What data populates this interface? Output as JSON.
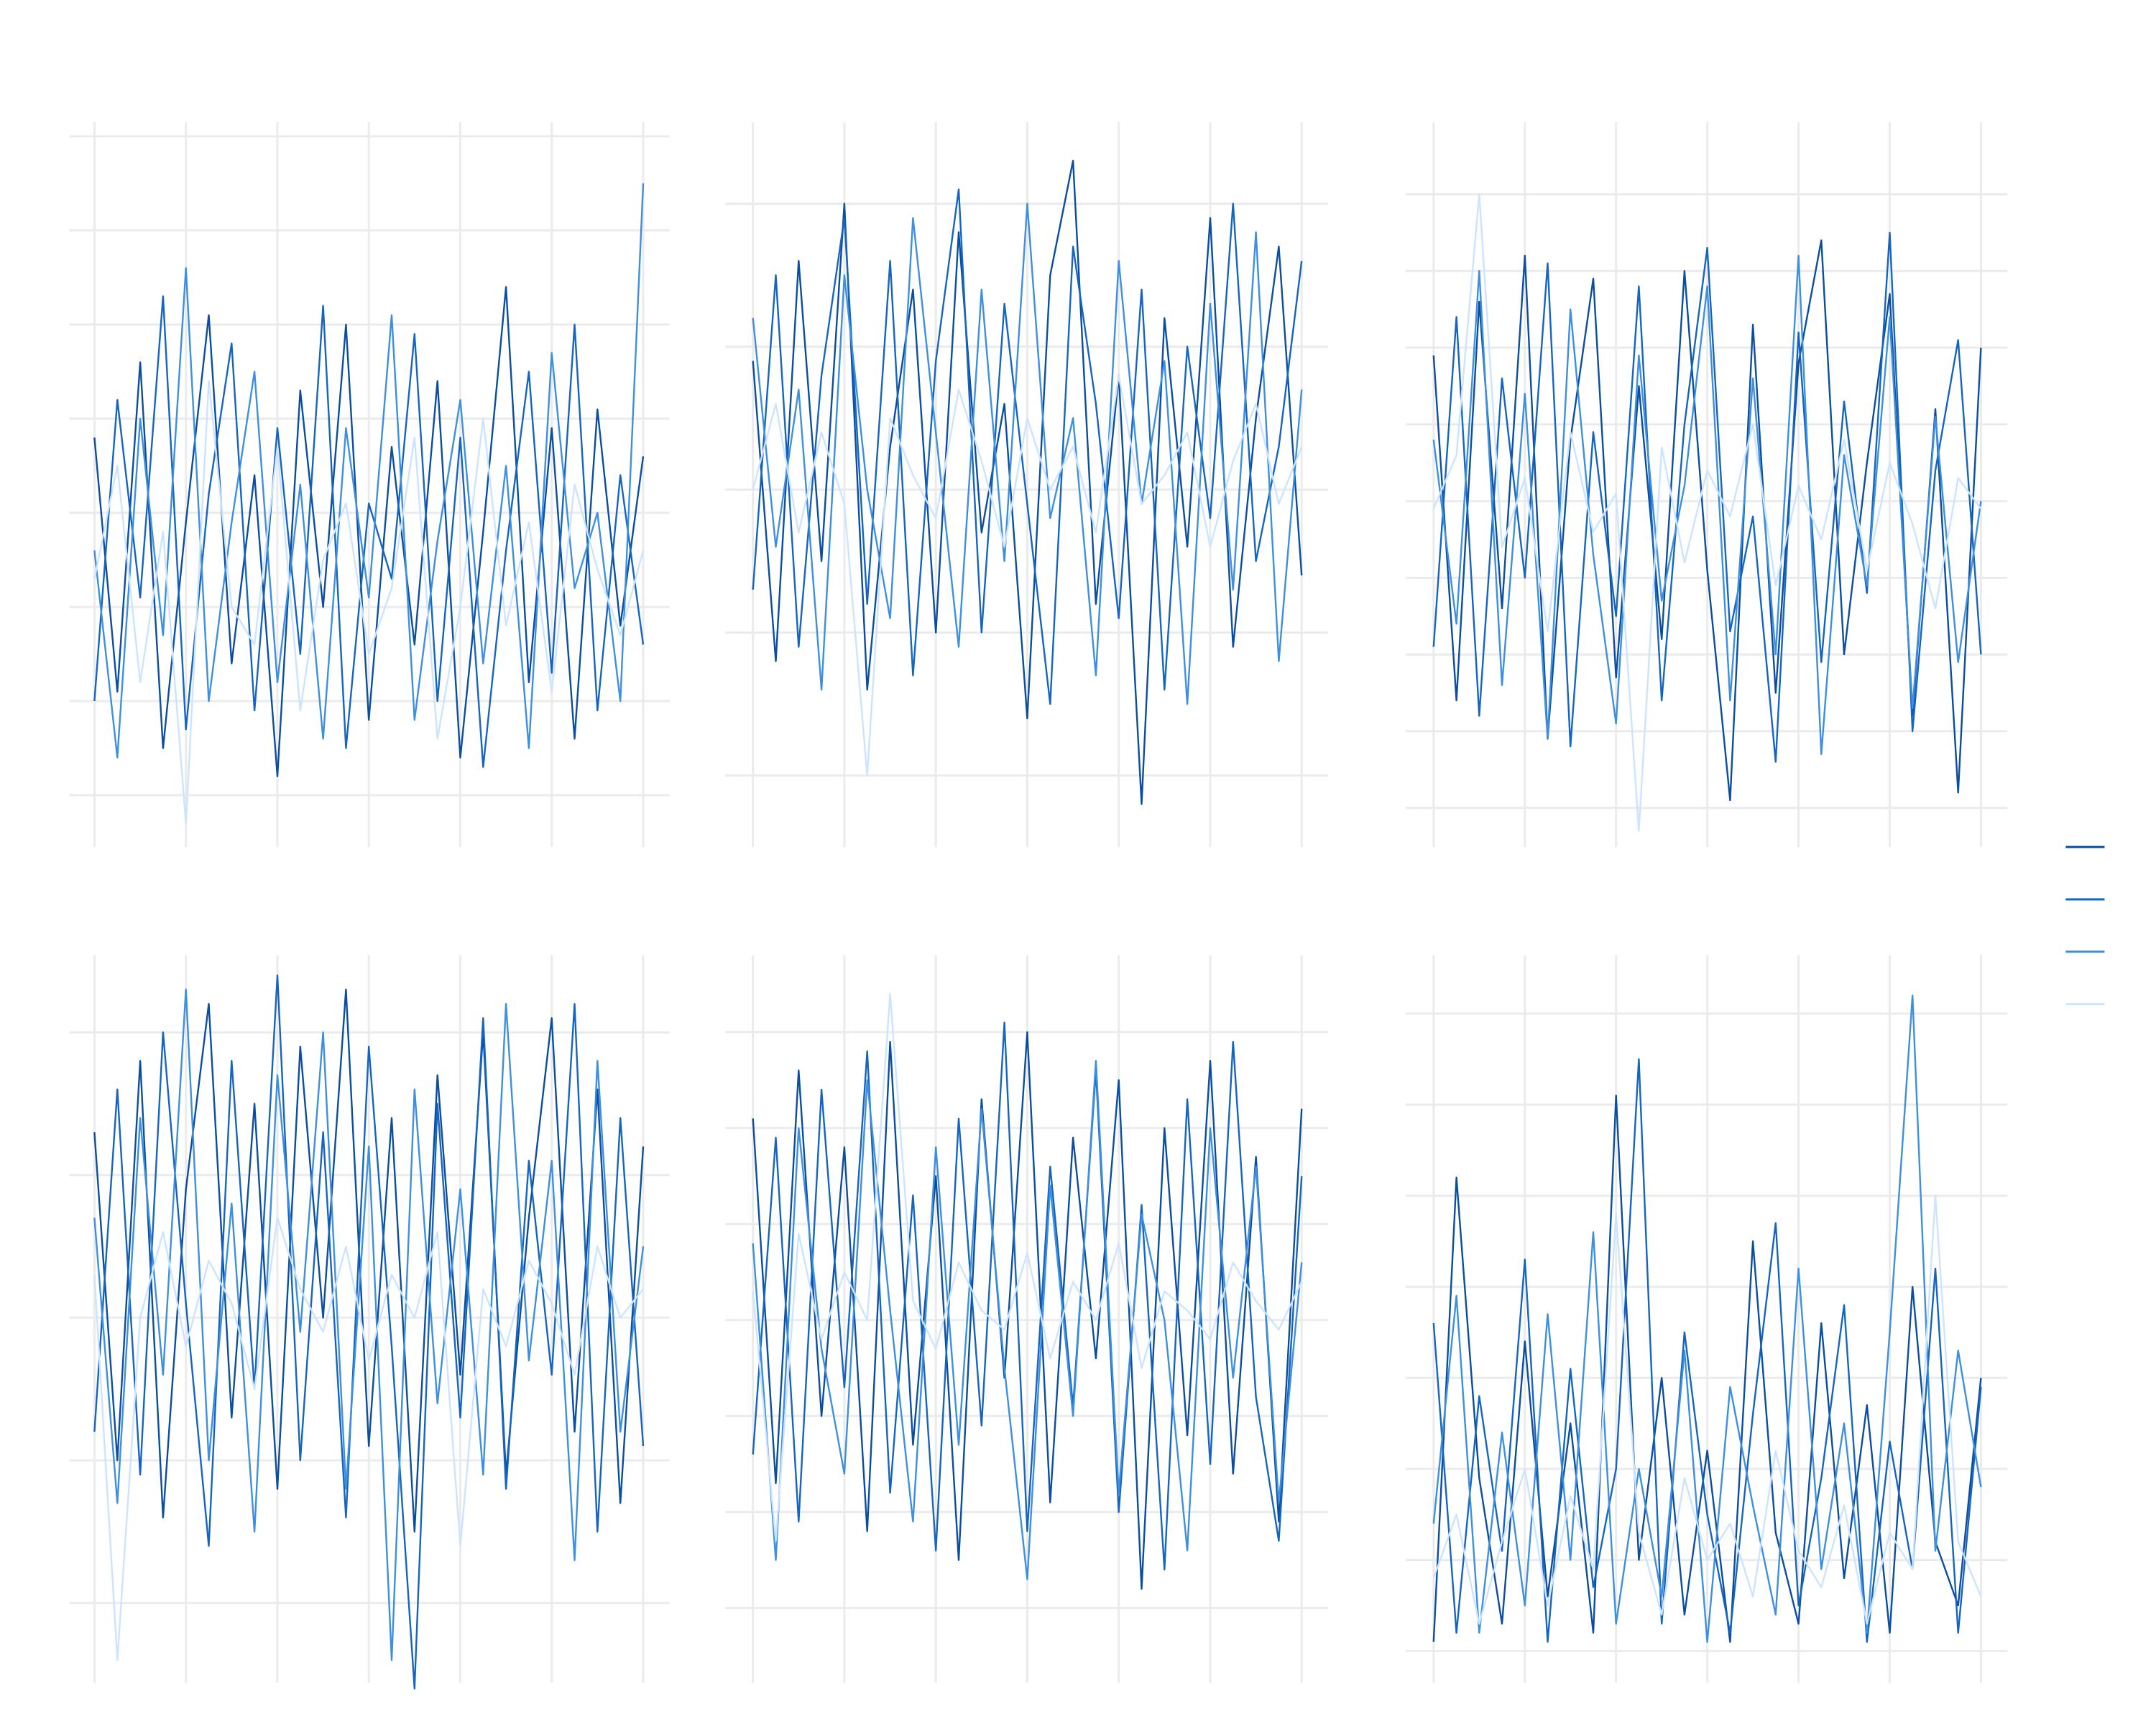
{
  "chart_data": [
    {
      "type": "line",
      "grid": true,
      "xlim": [
        0,
        1200
      ],
      "xticks": [
        0,
        200,
        400,
        600,
        800,
        1000,
        1200
      ],
      "ylim": [
        0.45,
        8.15
      ],
      "yticks": [
        1,
        2,
        3,
        4,
        5,
        6,
        7,
        8
      ],
      "x": [
        0,
        50,
        100,
        150,
        200,
        250,
        300,
        350,
        400,
        450,
        500,
        550,
        600,
        650,
        700,
        750,
        800,
        850,
        900,
        950,
        1000,
        1050,
        1100,
        1150,
        1200
      ],
      "series": [
        {
          "color": "#0b4d9e",
          "values": [
            4.8,
            2.1,
            5.6,
            1.5,
            3.9,
            6.1,
            2.4,
            4.4,
            1.2,
            5.3,
            3.0,
            6.0,
            1.8,
            4.7,
            2.6,
            5.4,
            1.4,
            3.8,
            6.4,
            2.2,
            4.9,
            1.6,
            5.1,
            2.8,
            4.6
          ]
        },
        {
          "color": "#1565c0",
          "values": [
            2.0,
            5.2,
            3.1,
            6.3,
            1.7,
            4.2,
            5.8,
            1.9,
            4.9,
            2.5,
            6.2,
            1.5,
            4.1,
            3.3,
            5.9,
            2.0,
            4.8,
            1.3,
            3.6,
            5.5,
            2.3,
            6.0,
            1.9,
            4.4,
            2.6
          ]
        },
        {
          "color": "#3d8fe0",
          "values": [
            3.6,
            1.4,
            5.0,
            2.7,
            6.6,
            2.0,
            3.9,
            5.5,
            2.2,
            4.3,
            1.6,
            4.9,
            3.1,
            6.1,
            1.8,
            3.7,
            5.2,
            2.4,
            4.5,
            1.5,
            5.7,
            3.2,
            4.0,
            2.0,
            7.5
          ]
        },
        {
          "color": "#cce4ff",
          "values": [
            3.3,
            4.5,
            2.2,
            3.8,
            0.7,
            5.4,
            3.0,
            2.6,
            4.7,
            1.9,
            3.5,
            4.1,
            2.5,
            3.2,
            4.8,
            1.6,
            3.0,
            5.0,
            2.8,
            3.9,
            2.1,
            4.3,
            3.4,
            2.7,
            3.6
          ]
        }
      ]
    },
    {
      "type": "line",
      "grid": true,
      "xlim": [
        0,
        1200
      ],
      "xticks": [
        0,
        200,
        400,
        600,
        800,
        1000,
        1200
      ],
      "ylim": [
        0.5,
        5.57
      ],
      "yticks": [
        1,
        2,
        3,
        4,
        5
      ],
      "x": [
        0,
        50,
        100,
        150,
        200,
        250,
        300,
        350,
        400,
        450,
        500,
        550,
        600,
        650,
        700,
        750,
        800,
        850,
        900,
        950,
        1000,
        1050,
        1100,
        1150,
        1200
      ],
      "series": [
        {
          "color": "#0b4d9e",
          "values": [
            3.9,
            1.8,
            4.6,
            2.5,
            5.0,
            1.6,
            3.3,
            4.4,
            2.0,
            4.8,
            2.7,
            3.6,
            1.4,
            4.5,
            5.3,
            2.2,
            3.8,
            0.8,
            4.2,
            2.6,
            4.9,
            1.9,
            3.5,
            4.7,
            2.4
          ]
        },
        {
          "color": "#1565c0",
          "values": [
            2.3,
            4.5,
            1.9,
            3.8,
            4.9,
            2.2,
            4.6,
            1.7,
            3.9,
            5.1,
            2.0,
            4.3,
            2.9,
            1.5,
            4.7,
            3.6,
            2.1,
            4.4,
            1.6,
            4.0,
            2.8,
            5.0,
            2.5,
            3.3,
            4.6
          ]
        },
        {
          "color": "#3d8fe0",
          "values": [
            4.2,
            2.6,
            3.7,
            1.6,
            4.5,
            3.0,
            2.1,
            4.9,
            3.4,
            1.9,
            4.4,
            2.5,
            5.0,
            2.8,
            3.5,
            1.7,
            4.6,
            2.9,
            3.9,
            1.5,
            4.3,
            2.3,
            4.8,
            1.8,
            3.7
          ]
        },
        {
          "color": "#cce4ff",
          "values": [
            3.0,
            3.6,
            2.7,
            3.4,
            2.9,
            1.0,
            3.5,
            3.1,
            2.8,
            3.7,
            3.2,
            2.6,
            3.5,
            3.0,
            3.3,
            2.7,
            3.8,
            2.9,
            3.1,
            3.4,
            2.6,
            3.2,
            3.6,
            2.9,
            3.3
          ]
        }
      ]
    },
    {
      "type": "line",
      "grid": true,
      "xlim": [
        0,
        1200
      ],
      "xticks": [
        0,
        200,
        400,
        600,
        800,
        1000,
        1200
      ],
      "ylim": [
        0.49,
        9.94
      ],
      "yticks": [
        1,
        2,
        3,
        4,
        5,
        6,
        7,
        8,
        9
      ],
      "x": [
        0,
        50,
        100,
        150,
        200,
        250,
        300,
        350,
        400,
        450,
        500,
        550,
        600,
        650,
        700,
        750,
        800,
        850,
        900,
        950,
        1000,
        1050,
        1100,
        1150,
        1200
      ],
      "series": [
        {
          "color": "#0b4d9e",
          "values": [
            6.9,
            2.4,
            7.6,
            3.6,
            8.2,
            1.9,
            5.8,
            7.9,
            2.7,
            6.5,
            3.2,
            8.0,
            4.1,
            1.1,
            7.3,
            2.5,
            6.8,
            8.4,
            3.0,
            5.5,
            7.7,
            2.2,
            6.2,
            1.2,
            7.0
          ]
        },
        {
          "color": "#1565c0",
          "values": [
            3.1,
            7.4,
            2.2,
            6.6,
            4.0,
            8.1,
            1.8,
            5.9,
            3.5,
            7.8,
            2.4,
            6.0,
            8.3,
            3.3,
            4.8,
            1.6,
            7.2,
            2.9,
            6.3,
            3.8,
            8.5,
            2.0,
            5.4,
            7.1,
            3.0
          ]
        },
        {
          "color": "#3d8fe0",
          "values": [
            5.8,
            3.4,
            8.0,
            2.6,
            6.4,
            1.9,
            7.5,
            4.3,
            2.1,
            6.9,
            3.7,
            5.2,
            7.8,
            2.4,
            6.6,
            3.0,
            8.2,
            1.7,
            5.6,
            3.9,
            7.4,
            2.3,
            6.1,
            2.9,
            5.0
          ]
        },
        {
          "color": "#cce4ff",
          "values": [
            4.9,
            5.6,
            9.0,
            4.4,
            5.3,
            3.3,
            5.9,
            4.6,
            5.1,
            0.7,
            5.7,
            4.2,
            5.4,
            4.8,
            6.0,
            3.9,
            5.2,
            4.5,
            5.8,
            4.1,
            5.5,
            4.7,
            3.6,
            5.3,
            4.9
          ]
        }
      ]
    },
    {
      "type": "line",
      "grid": true,
      "xlim": [
        0,
        1200
      ],
      "xticks": [
        0,
        200,
        400,
        600,
        800,
        1000,
        1200
      ],
      "ylim": [
        0.44,
        5.54
      ],
      "yticks": [
        1,
        2,
        3,
        4,
        5
      ],
      "x": [
        0,
        50,
        100,
        150,
        200,
        250,
        300,
        350,
        400,
        450,
        500,
        550,
        600,
        650,
        700,
        750,
        800,
        850,
        900,
        950,
        1000,
        1050,
        1100,
        1150,
        1200
      ],
      "series": [
        {
          "color": "#0b4d9e",
          "values": [
            4.3,
            2.0,
            4.8,
            1.6,
            3.9,
            5.2,
            2.3,
            4.5,
            1.8,
            4.9,
            3.0,
            5.3,
            2.1,
            4.4,
            1.5,
            4.7,
            2.6,
            5.0,
            1.9,
            3.7,
            5.1,
            2.2,
            4.6,
            1.7,
            4.2
          ]
        },
        {
          "color": "#1565c0",
          "values": [
            2.2,
            4.6,
            1.9,
            5.0,
            3.1,
            1.4,
            4.8,
            2.5,
            5.4,
            2.0,
            4.3,
            1.6,
            4.9,
            2.8,
            0.4,
            4.5,
            2.3,
            5.1,
            1.8,
            4.1,
            2.6,
            5.2,
            1.5,
            4.4,
            2.1
          ]
        },
        {
          "color": "#3d8fe0",
          "values": [
            3.7,
            1.7,
            4.4,
            2.6,
            5.3,
            2.0,
            3.8,
            1.5,
            4.7,
            2.9,
            5.0,
            1.8,
            4.2,
            0.6,
            4.6,
            2.4,
            3.9,
            1.9,
            5.2,
            2.7,
            4.1,
            1.3,
            4.8,
            2.2,
            3.5
          ]
        },
        {
          "color": "#cce4ff",
          "values": [
            3.3,
            0.6,
            3.0,
            3.6,
            2.8,
            3.4,
            3.1,
            2.5,
            3.7,
            3.2,
            2.9,
            3.5,
            2.7,
            3.3,
            3.0,
            3.6,
            1.4,
            3.2,
            2.8,
            3.4,
            3.1,
            2.6,
            3.5,
            3.0,
            3.2
          ]
        }
      ]
    },
    {
      "type": "line",
      "grid": true,
      "xlim": [
        0,
        1200
      ],
      "xticks": [
        0,
        200,
        400,
        600,
        800,
        1000,
        1200
      ],
      "ylim": [
        0.22,
        7.8
      ],
      "yticks": [
        1,
        2,
        3,
        4,
        5,
        6,
        7
      ],
      "x": [
        0,
        50,
        100,
        150,
        200,
        250,
        300,
        350,
        400,
        450,
        500,
        550,
        600,
        650,
        700,
        750,
        800,
        850,
        900,
        950,
        1000,
        1050,
        1100,
        1150,
        1200
      ],
      "series": [
        {
          "color": "#0b4d9e",
          "values": [
            6.1,
            2.3,
            6.6,
            3.0,
            5.8,
            1.8,
            6.9,
            2.7,
            5.5,
            1.5,
            6.3,
            3.4,
            7.0,
            2.1,
            5.9,
            3.6,
            6.5,
            1.2,
            6.0,
            2.8,
            6.7,
            2.4,
            5.7,
            1.9,
            6.2
          ]
        },
        {
          "color": "#1565c0",
          "values": [
            2.6,
            5.9,
            1.9,
            6.4,
            3.3,
            6.8,
            2.2,
            5.3,
            1.6,
            6.1,
            2.9,
            7.1,
            1.8,
            5.6,
            3.1,
            6.6,
            2.0,
            5.2,
            1.4,
            6.3,
            2.5,
            6.9,
            3.2,
            1.7,
            5.5
          ]
        },
        {
          "color": "#3d8fe0",
          "values": [
            4.8,
            1.5,
            6.0,
            3.7,
            2.4,
            6.5,
            4.1,
            1.9,
            5.8,
            2.7,
            6.2,
            3.5,
            1.3,
            5.4,
            3.0,
            6.7,
            2.2,
            5.1,
            4.0,
            1.6,
            6.0,
            3.4,
            5.6,
            2.1,
            4.6
          ]
        },
        {
          "color": "#cce4ff",
          "values": [
            4.3,
            1.7,
            4.9,
            3.8,
            4.5,
            4.0,
            7.4,
            4.2,
            3.7,
            4.6,
            4.1,
            3.9,
            4.7,
            3.6,
            4.4,
            4.0,
            4.8,
            3.5,
            4.3,
            4.1,
            3.8,
            4.6,
            4.2,
            3.9,
            4.4
          ]
        }
      ]
    },
    {
      "type": "line",
      "grid": true,
      "xlim": [
        0,
        1200
      ],
      "xticks": [
        0,
        200,
        400,
        600,
        800,
        1000,
        1200
      ],
      "ylim": [
        -0.35,
        7.64
      ],
      "yticks": [
        0,
        1,
        2,
        3,
        4,
        5,
        6,
        7
      ],
      "x": [
        0,
        50,
        100,
        150,
        200,
        250,
        300,
        350,
        400,
        450,
        500,
        550,
        600,
        650,
        700,
        750,
        800,
        850,
        900,
        950,
        1000,
        1050,
        1100,
        1150,
        1200
      ],
      "series": [
        {
          "color": "#0b4d9e",
          "values": [
            0.1,
            5.2,
            1.9,
            0.3,
            3.4,
            0.6,
            2.5,
            0.2,
            6.1,
            1.0,
            3.0,
            0.4,
            2.2,
            0.1,
            4.5,
            1.3,
            0.3,
            3.6,
            0.8,
            2.7,
            0.2,
            4.0,
            1.2,
            0.5,
            3.0
          ]
        },
        {
          "color": "#1565c0",
          "values": [
            3.6,
            0.2,
            2.8,
            1.1,
            4.3,
            0.1,
            3.1,
            0.7,
            2.0,
            6.5,
            0.3,
            3.5,
            1.5,
            0.2,
            2.6,
            4.7,
            0.5,
            1.9,
            3.8,
            0.1,
            2.3,
            0.9,
            4.2,
            0.2,
            2.9
          ]
        },
        {
          "color": "#3d8fe0",
          "values": [
            1.4,
            3.9,
            0.2,
            2.4,
            0.5,
            3.7,
            1.0,
            4.6,
            0.3,
            2.0,
            0.6,
            3.3,
            0.1,
            2.9,
            1.6,
            0.4,
            4.2,
            0.9,
            2.5,
            0.2,
            3.5,
            7.2,
            1.1,
            3.3,
            1.8
          ]
        },
        {
          "color": "#cce4ff",
          "values": [
            0.8,
            1.5,
            0.3,
            1.2,
            2.0,
            0.5,
            1.7,
            0.9,
            4.8,
            1.3,
            0.4,
            1.9,
            1.0,
            1.4,
            0.6,
            2.2,
            1.1,
            0.7,
            1.6,
            0.3,
            1.3,
            0.9,
            5.0,
            1.2,
            0.6
          ]
        }
      ]
    }
  ]
}
